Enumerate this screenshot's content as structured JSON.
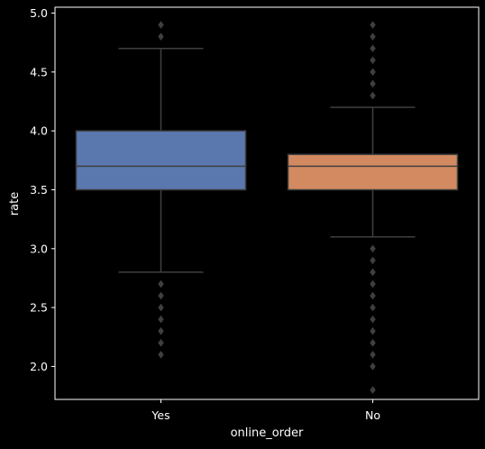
{
  "chart_data": {
    "type": "box",
    "xlabel": "online_order",
    "ylabel": "rate",
    "ylim": [
      1.72,
      5.05
    ],
    "yticks": [
      "2.0",
      "2.5",
      "3.0",
      "3.5",
      "4.0",
      "4.5",
      "5.0"
    ],
    "grid": false,
    "legend": "none",
    "categories": [
      "Yes",
      "No"
    ],
    "boxes": [
      {
        "category": "Yes",
        "color": "#5a78ae",
        "q1": 3.5,
        "median": 3.7,
        "q3": 4.0,
        "whisker_low": 2.8,
        "whisker_high": 4.7,
        "outliers": [
          2.1,
          2.2,
          2.3,
          2.4,
          2.5,
          2.6,
          2.7,
          4.8,
          4.9
        ]
      },
      {
        "category": "No",
        "color": "#d38a60",
        "q1": 3.5,
        "median": 3.7,
        "q3": 3.8,
        "whisker_low": 3.1,
        "whisker_high": 4.2,
        "outliers": [
          1.8,
          2.0,
          2.1,
          2.2,
          2.3,
          2.4,
          2.5,
          2.6,
          2.7,
          2.8,
          2.9,
          3.0,
          4.3,
          4.4,
          4.5,
          4.6,
          4.7,
          4.8,
          4.9
        ]
      }
    ]
  }
}
